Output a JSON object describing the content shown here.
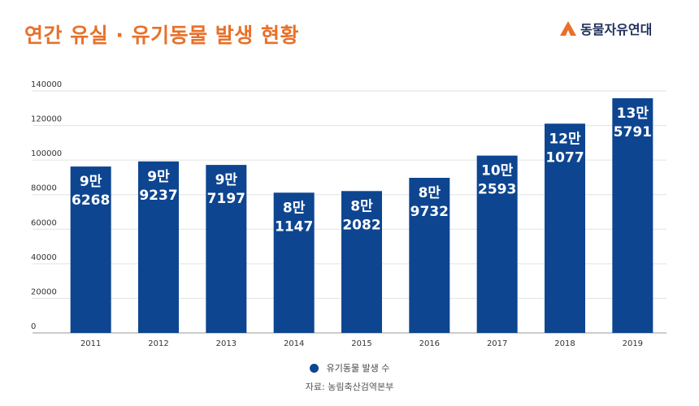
{
  "header": {
    "title": "연간 유실 · 유기동물 발생 현황",
    "brand": "동물자유연대"
  },
  "colors": {
    "bar": "#0d4590",
    "title": "#e8702a",
    "grid": "#e2e2e2",
    "bar_label": "#ffffff"
  },
  "chart_data": {
    "type": "bar",
    "categories": [
      "2011",
      "2012",
      "2013",
      "2014",
      "2015",
      "2016",
      "2017",
      "2018",
      "2019"
    ],
    "series": [
      {
        "name": "유기동물 발생 수",
        "values": [
          96268,
          99237,
          97197,
          81147,
          82082,
          89732,
          102593,
          121077,
          135791
        ],
        "labels": [
          [
            "9만",
            "6268"
          ],
          [
            "9만",
            "9237"
          ],
          [
            "9만",
            "7197"
          ],
          [
            "8만",
            "1147"
          ],
          [
            "8만",
            "2082"
          ],
          [
            "8만",
            "9732"
          ],
          [
            "10만",
            "2593"
          ],
          [
            "12만",
            "1077"
          ],
          [
            "13만",
            "5791"
          ]
        ]
      }
    ],
    "yticks": [
      "0",
      "20000",
      "40000",
      "60000",
      "80000",
      "100000",
      "120000",
      "140000"
    ],
    "ylim": [
      0,
      140000
    ],
    "grid": true,
    "legend_position": "bottom-center"
  },
  "footer": {
    "source": "자료: 농림축산검역본부"
  }
}
